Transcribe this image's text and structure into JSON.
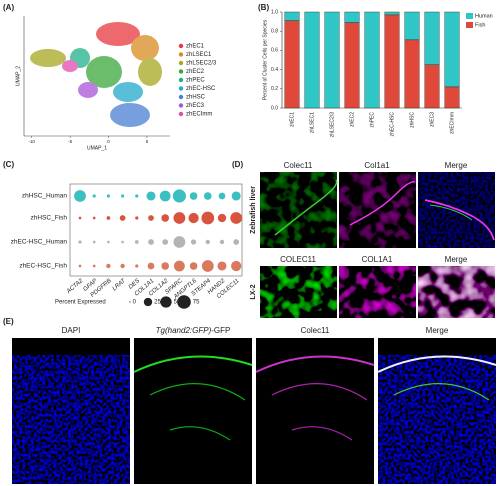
{
  "panel_labels": [
    "(A)",
    "(B)",
    "(C)",
    "(D)",
    "(E)"
  ],
  "chart_data": [
    {
      "type": "umap",
      "xlabel": "UMAP_1",
      "ylabel": "UMAP_2",
      "xlim": [
        -11,
        8
      ],
      "xticks": [
        -10,
        -5,
        0,
        5
      ],
      "series": [
        {
          "name": "zhEC1",
          "color": "#e8383d"
        },
        {
          "name": "zhLSEC1",
          "color": "#d98b1f"
        },
        {
          "name": "zhLSEC2/3",
          "color": "#a8a820"
        },
        {
          "name": "zhEC2",
          "color": "#3aa63a"
        },
        {
          "name": "zhPEC",
          "color": "#1fb08a"
        },
        {
          "name": "zhEC-HSC",
          "color": "#22aacc"
        },
        {
          "name": "zhHSC",
          "color": "#4a7fd4"
        },
        {
          "name": "zhEC3",
          "color": "#a855d6"
        },
        {
          "name": "zhECImm",
          "color": "#e04cb0"
        }
      ]
    },
    {
      "type": "bar",
      "stacked": true,
      "ylabel": "Percent of Cluster Cells per Species",
      "categories": [
        "zhEC1",
        "zhLSEC1",
        "zhLSEC2/3",
        "zhEC2",
        "zhPEC",
        "zhEC-HSC",
        "zhHSC",
        "zhEC3",
        "zhECImm"
      ],
      "series": [
        {
          "name": "Human",
          "color": "#2fc6c6",
          "values": [
            0.09,
            1,
            1,
            0.11,
            1,
            0.03,
            0.29,
            0.55,
            0.78
          ]
        },
        {
          "name": "Fish",
          "color": "#e0493a",
          "values": [
            0.91,
            0,
            0,
            0.89,
            0,
            0.97,
            0.71,
            0.45,
            0.22
          ]
        }
      ],
      "ylim": [
        0,
        1
      ],
      "yticks": [
        {
          "value": 0,
          "label": "0.0"
        },
        0.2,
        0.4,
        0.6,
        0.8,
        {
          "value": 1,
          "label": "1.0"
        }
      ],
      "legend": "right"
    },
    {
      "type": "dotplot",
      "columns": [
        "ACTA2",
        "GFAP",
        "PDGFRB",
        "LRAT",
        "DES",
        "COL1A1",
        "COL1A2",
        "SPARC",
        "ANGPTL6",
        "STEAP4",
        "HAND2",
        "COLEC11"
      ],
      "series": [
        {
          "name": "zhHSC_Human",
          "color": "#3cbfc0",
          "values": [
            55,
            2,
            2,
            2,
            2,
            30,
            45,
            70,
            20,
            20,
            15,
            30
          ]
        },
        {
          "name": "zhHSC_Fish",
          "color": "#d9543f",
          "values": [
            1,
            1,
            3,
            10,
            2,
            10,
            20,
            55,
            40,
            65,
            25,
            55
          ]
        },
        {
          "name": "zhEC-HSC_Human",
          "color": "#b4b4b4",
          "values": [
            2,
            1,
            1,
            1,
            3,
            10,
            10,
            55,
            8,
            5,
            5,
            10
          ]
        },
        {
          "name": "zhEC-HSC_Fish",
          "color": "#d97a5f",
          "values": [
            1,
            1,
            5,
            5,
            2,
            15,
            20,
            45,
            20,
            55,
            30,
            40
          ]
        }
      ],
      "size_legend_title": "Percent Expressed",
      "size_ticks": [
        0,
        25,
        50,
        75
      ],
      "size_max": 75
    }
  ],
  "images": {
    "D": {
      "titles_top": [
        "Colec11",
        "Col1a1",
        "Merge"
      ],
      "titles_bottom": [
        "COLEC11",
        "COL1A1",
        "Merge"
      ],
      "row_labels": [
        "Zebrafish liver",
        "LX-2"
      ]
    },
    "E": {
      "titles": [
        "DAPI",
        {
          "italic": "Tg(hand2:GFP)",
          "plain": "-GFP"
        },
        "Colec11",
        "Merge"
      ]
    }
  }
}
